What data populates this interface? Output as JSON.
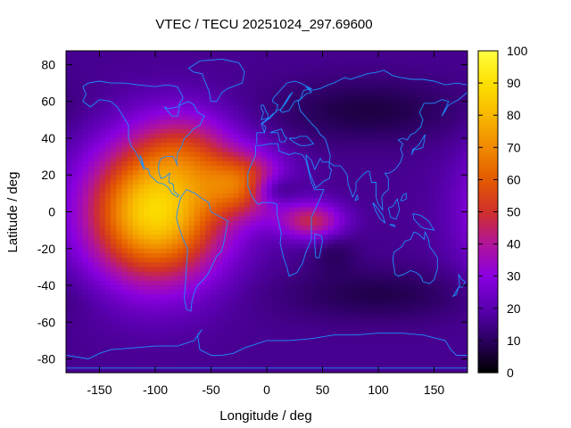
{
  "chart_data": {
    "type": "heatmap",
    "title": "VTEC / TECU 20251024_297.69600",
    "xlabel": "Longitude / deg",
    "ylabel": "Latitude / deg",
    "xlim": [
      -180,
      180
    ],
    "ylim": [
      -87.5,
      87.5
    ],
    "x_ticks": [
      -150,
      -100,
      -50,
      0,
      50,
      100,
      150
    ],
    "x_tick_labels": [
      "-150",
      "-100",
      "-50",
      "0",
      "50",
      "100",
      "150"
    ],
    "y_ticks": [
      80,
      60,
      40,
      20,
      0,
      -20,
      -40,
      -60,
      -80
    ],
    "y_tick_labels": [
      "80",
      "60",
      "40",
      "20",
      "0",
      "-20",
      "-40",
      "-60",
      "-80"
    ],
    "colorbar": {
      "range": [
        0,
        100
      ],
      "ticks": [
        100,
        90,
        80,
        70,
        60,
        50,
        40,
        30,
        20,
        10,
        0
      ],
      "tick_labels": [
        "100",
        "90",
        "80",
        "70",
        "60",
        "50",
        "40",
        "30",
        "20",
        "10",
        "0"
      ],
      "palette": [
        "#000000",
        "#2b0060",
        "#5a00b0",
        "#8a00e0",
        "#b0149a",
        "#d0302a",
        "#e45a00",
        "#f08a00",
        "#f8b800",
        "#fce000",
        "#ffff40"
      ]
    },
    "grid_resolution": {
      "lon_step": 5,
      "lat_step": 2.5
    },
    "tec_model": {
      "background": 16,
      "blobs": [
        {
          "lon": -100,
          "lat": 0,
          "sigma_lon": 42,
          "sigma_lat": 26,
          "value": 72
        },
        {
          "lon": -70,
          "lat": 35,
          "sigma_lon": 30,
          "sigma_lat": 15,
          "value": 18
        },
        {
          "lon": -20,
          "lat": 15,
          "sigma_lon": 25,
          "sigma_lat": 12,
          "value": 38
        },
        {
          "lon": 40,
          "lat": -5,
          "sigma_lon": 20,
          "sigma_lat": 7,
          "value": 30
        },
        {
          "lon": 5,
          "lat": 12,
          "sigma_lon": 15,
          "sigma_lat": 6,
          "value": -18
        },
        {
          "lon": 90,
          "lat": 55,
          "sigma_lon": 60,
          "sigma_lat": 12,
          "value": -9
        },
        {
          "lon": 100,
          "lat": -45,
          "sigma_lon": 60,
          "sigma_lat": 10,
          "value": -8
        },
        {
          "lon": 60,
          "lat": -22,
          "sigma_lon": 15,
          "sigma_lat": 8,
          "value": -6
        }
      ]
    },
    "coastline_color": "#1e90ff"
  }
}
